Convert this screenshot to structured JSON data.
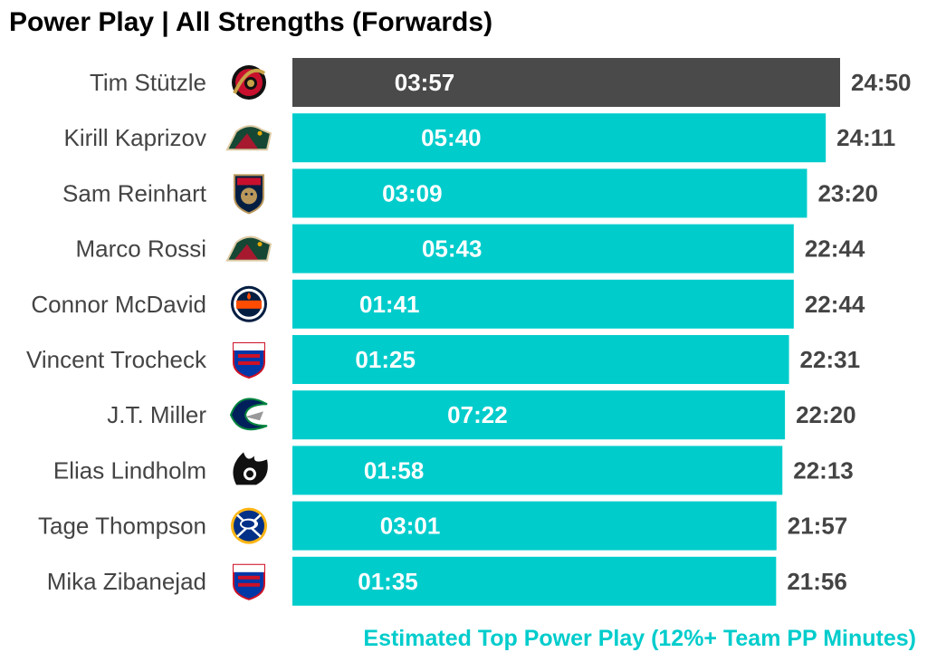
{
  "chart_data": {
    "type": "bar",
    "orientation": "horizontal",
    "title": "Power Play | All Strengths (Forwards)",
    "legend": {
      "text": "Estimated Top Power Play (12%+ Team PP Minutes)",
      "placement": "bottom-right"
    },
    "grid": false,
    "colors": {
      "highlight": "#4a4a4a",
      "default": "#00cccc",
      "player_label": "#444444",
      "total_label": "#444444",
      "inner_label": "#ffffff",
      "legend": "#00cccc"
    },
    "xlim_seconds": [
      0,
      1490
    ],
    "players": [
      {
        "name": "Tim Stützle",
        "team_icon": "ottawa-senators-logo",
        "total": "24:50",
        "total_seconds": 1490,
        "pp": "03:57",
        "pp_seconds": 237,
        "highlight": true
      },
      {
        "name": "Kirill Kaprizov",
        "team_icon": "minnesota-wild-logo",
        "total": "24:11",
        "total_seconds": 1451,
        "pp": "05:40",
        "pp_seconds": 340,
        "highlight": false
      },
      {
        "name": "Sam Reinhart",
        "team_icon": "florida-panthers-logo",
        "total": "23:20",
        "total_seconds": 1400,
        "pp": "03:09",
        "pp_seconds": 189,
        "highlight": false
      },
      {
        "name": "Marco Rossi",
        "team_icon": "minnesota-wild-logo",
        "total": "22:44",
        "total_seconds": 1364,
        "pp": "05:43",
        "pp_seconds": 343,
        "highlight": false
      },
      {
        "name": "Connor McDavid",
        "team_icon": "edmonton-oilers-logo",
        "total": "22:44",
        "total_seconds": 1364,
        "pp": "01:41",
        "pp_seconds": 101,
        "highlight": false
      },
      {
        "name": "Vincent Trocheck",
        "team_icon": "new-york-rangers-logo",
        "total": "22:31",
        "total_seconds": 1351,
        "pp": "01:25",
        "pp_seconds": 85,
        "highlight": false
      },
      {
        "name": "J.T. Miller",
        "team_icon": "vancouver-canucks-logo",
        "total": "22:20",
        "total_seconds": 1340,
        "pp": "07:22",
        "pp_seconds": 442,
        "highlight": false
      },
      {
        "name": "Elias Lindholm",
        "team_icon": "calgary-flames-logo",
        "total": "22:13",
        "total_seconds": 1333,
        "pp": "01:58",
        "pp_seconds": 118,
        "highlight": false
      },
      {
        "name": "Tage Thompson",
        "team_icon": "buffalo-sabres-logo",
        "total": "21:57",
        "total_seconds": 1317,
        "pp": "03:01",
        "pp_seconds": 181,
        "highlight": false
      },
      {
        "name": "Mika Zibanejad",
        "team_icon": "new-york-rangers-logo",
        "total": "21:56",
        "total_seconds": 1316,
        "pp": "01:35",
        "pp_seconds": 95,
        "highlight": false
      }
    ]
  }
}
